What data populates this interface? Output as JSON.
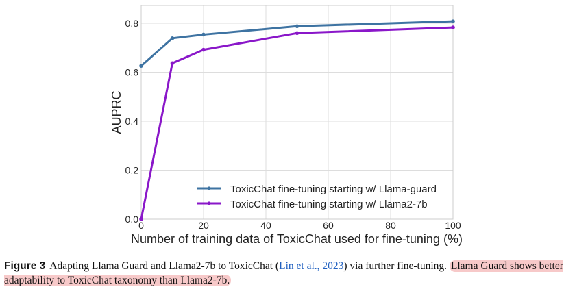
{
  "chart_data": {
    "type": "line",
    "xlabel": "Number of training data of ToxicChat used for fine-tuning (%)",
    "ylabel": "AUPRC",
    "xlim": [
      0,
      100
    ],
    "ylim": [
      0,
      0.8
    ],
    "xticks": [
      0,
      20,
      40,
      60,
      80,
      100
    ],
    "yticks": [
      0.0,
      0.2,
      0.4,
      0.6,
      0.8
    ],
    "xtick_labels": [
      "0",
      "20",
      "40",
      "60",
      "80",
      "100"
    ],
    "ytick_labels": [
      "0.0",
      "0.2",
      "0.4",
      "0.6",
      "0.8"
    ],
    "grid": true,
    "legend_position": "lower-right",
    "series": [
      {
        "name": "ToxicChat fine-tuning starting w/ Llama-guard",
        "color": "#3e73a2",
        "x": [
          0,
          10,
          20,
          50,
          100
        ],
        "y": [
          0.626,
          0.739,
          0.754,
          0.788,
          0.808
        ]
      },
      {
        "name": "ToxicChat fine-tuning starting w/ Llama2-7b",
        "color": "#8a17c9",
        "x": [
          0,
          10,
          20,
          50,
          100
        ],
        "y": [
          0.0,
          0.637,
          0.692,
          0.76,
          0.783
        ]
      }
    ]
  },
  "caption": {
    "label": "Figure 3",
    "text_before": "Adapting Llama Guard and Llama2-7b to ToxicChat (",
    "citation": "Lin et al., 2023",
    "text_after": ") via further fine-tuning.",
    "highlight": "Llama Guard shows better adaptability to ToxicChat taxonomy than Llama2-7b.",
    "highlight_color": "#f7c9c9"
  }
}
